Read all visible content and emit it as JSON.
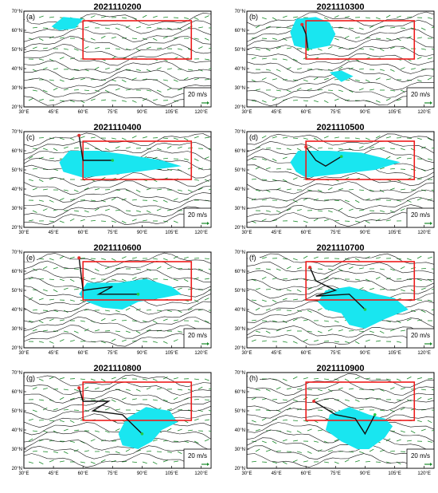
{
  "colors": {
    "blob": "#19e6f0",
    "region_box": "#ee1c1c",
    "wind_arrow": "#1a8a2a",
    "contour": "#111111",
    "track": "#111111",
    "highlight_green": "#22cc44",
    "highlight_yellow": "#ffd21a",
    "highlight_purple": "#8a1a9a",
    "highlight_red": "#e03030"
  },
  "panels": [
    {
      "letter": "(a)",
      "title": "2021110200"
    },
    {
      "letter": "(b)",
      "title": "2021110300"
    },
    {
      "letter": "(c)",
      "title": "2021110400"
    },
    {
      "letter": "(d)",
      "title": "2021110500"
    },
    {
      "letter": "(e)",
      "title": "2021110600"
    },
    {
      "letter": "(f)",
      "title": "2021110700"
    },
    {
      "letter": "(g)",
      "title": "2021110800"
    },
    {
      "letter": "(h)",
      "title": "2021110900"
    }
  ],
  "axes": {
    "x_ticks": [
      "30°E",
      "45°E",
      "60°E",
      "75°E",
      "90°E",
      "105°E",
      "120°E"
    ],
    "y_ticks": [
      "70°N",
      "60°N",
      "50°N",
      "40°N",
      "30°N",
      "20°N"
    ],
    "x_values": [
      30,
      45,
      60,
      75,
      90,
      105,
      120
    ],
    "y_values": [
      70,
      60,
      50,
      40,
      30,
      20
    ],
    "xlim": [
      30,
      125
    ],
    "ylim": [
      20,
      70
    ]
  },
  "region_box": {
    "lon": [
      60,
      115
    ],
    "lat": [
      45,
      65
    ]
  },
  "reference_vector": {
    "label": "20 m/s"
  },
  "tracks": [
    [],
    [
      [
        58,
        63
      ],
      [
        60,
        58
      ],
      [
        61,
        50
      ]
    ],
    [
      [
        58,
        68
      ],
      [
        60,
        55
      ],
      [
        75,
        55
      ]
    ],
    [
      [
        60,
        62
      ],
      [
        65,
        55
      ],
      [
        70,
        52
      ],
      [
        78,
        57
      ]
    ],
    [
      [
        58,
        67
      ],
      [
        60,
        50
      ],
      [
        75,
        52
      ],
      [
        68,
        48
      ],
      [
        88,
        48
      ]
    ],
    [
      [
        62,
        62
      ],
      [
        65,
        55
      ],
      [
        75,
        50
      ],
      [
        65,
        47
      ],
      [
        82,
        48
      ],
      [
        90,
        40
      ]
    ],
    [
      [
        58,
        62
      ],
      [
        60,
        55
      ],
      [
        73,
        55
      ],
      [
        65,
        50
      ],
      [
        80,
        48
      ],
      [
        90,
        38
      ]
    ],
    [
      [
        64,
        55
      ],
      [
        75,
        48
      ],
      [
        85,
        46
      ],
      [
        90,
        38
      ],
      [
        95,
        48
      ]
    ]
  ],
  "blobs": [
    [
      [
        [
          44,
          62
        ],
        [
          50,
          67
        ],
        [
          60,
          66
        ],
        [
          56,
          61
        ],
        [
          48,
          60
        ]
      ]
    ],
    [
      [
        [
          52,
          59
        ],
        [
          55,
          66
        ],
        [
          65,
          67
        ],
        [
          72,
          64
        ],
        [
          75,
          58
        ],
        [
          72,
          52
        ],
        [
          62,
          50
        ],
        [
          54,
          52
        ]
      ],
      [
        [
          72,
          38
        ],
        [
          78,
          39
        ],
        [
          84,
          36
        ],
        [
          78,
          33
        ]
      ]
    ],
    [
      [
        [
          48,
          54
        ],
        [
          53,
          60
        ],
        [
          68,
          60
        ],
        [
          82,
          58
        ],
        [
          100,
          55
        ],
        [
          110,
          52
        ],
        [
          95,
          50
        ],
        [
          80,
          48
        ],
        [
          60,
          46
        ],
        [
          50,
          49
        ]
      ]
    ],
    [
      [
        [
          52,
          54
        ],
        [
          56,
          60
        ],
        [
          72,
          60
        ],
        [
          88,
          59
        ],
        [
          100,
          56
        ],
        [
          108,
          54
        ],
        [
          95,
          50
        ],
        [
          78,
          48
        ],
        [
          60,
          46
        ],
        [
          55,
          49
        ]
      ]
    ],
    [
      [
        [
          58,
          48
        ],
        [
          62,
          54
        ],
        [
          78,
          54
        ],
        [
          92,
          56
        ],
        [
          105,
          52
        ],
        [
          110,
          48
        ],
        [
          100,
          46
        ],
        [
          88,
          44
        ],
        [
          80,
          40
        ],
        [
          70,
          41
        ],
        [
          62,
          44
        ]
      ]
    ],
    [
      [
        [
          66,
          44
        ],
        [
          70,
          50
        ],
        [
          82,
          52
        ],
        [
          96,
          48
        ],
        [
          105,
          46
        ],
        [
          112,
          40
        ],
        [
          100,
          35
        ],
        [
          90,
          30
        ],
        [
          82,
          32
        ],
        [
          78,
          38
        ],
        [
          70,
          40
        ]
      ]
    ],
    [
      [
        [
          78,
          38
        ],
        [
          82,
          46
        ],
        [
          92,
          52
        ],
        [
          104,
          50
        ],
        [
          108,
          44
        ],
        [
          100,
          40
        ],
        [
          95,
          34
        ],
        [
          88,
          30
        ],
        [
          80,
          32
        ]
      ]
    ],
    [
      [
        [
          70,
          40
        ],
        [
          72,
          48
        ],
        [
          82,
          52
        ],
        [
          92,
          48
        ],
        [
          100,
          46
        ],
        [
          104,
          42
        ],
        [
          100,
          36
        ],
        [
          92,
          30
        ],
        [
          86,
          30
        ],
        [
          78,
          34
        ]
      ]
    ]
  ]
}
